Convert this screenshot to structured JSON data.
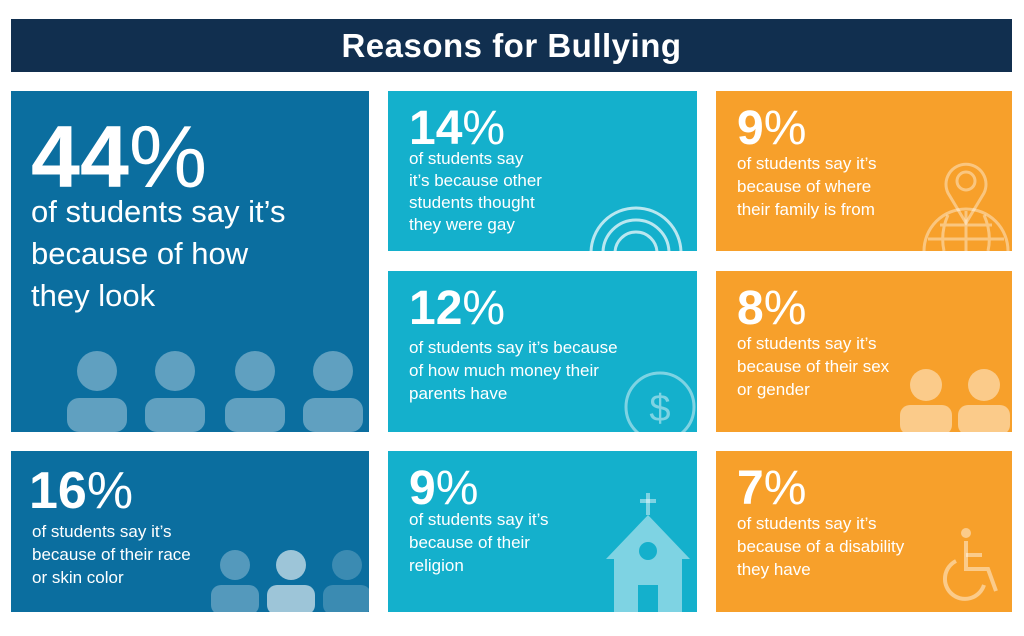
{
  "title": "Reasons for Bullying",
  "cards": [
    {
      "value": "44",
      "symbol": "%",
      "text": [
        "of students say it’s",
        "because of how",
        "they look"
      ],
      "icon": "people-icon",
      "color": "#0b6e9f"
    },
    {
      "value": "14",
      "symbol": "%",
      "text": [
        "of students say",
        "it’s because other",
        "students thought",
        "they were gay"
      ],
      "icon": "rainbow-icon",
      "color": "#14b0cc"
    },
    {
      "value": "9",
      "symbol": "%",
      "text": [
        "of students say it’s",
        "because of where",
        "their family is from"
      ],
      "icon": "globe-pin-icon",
      "color": "#f7a02b"
    },
    {
      "value": "12",
      "symbol": "%",
      "text": [
        "of students say it’s because",
        "of how much money their",
        "parents have"
      ],
      "icon": "dollar-coin-icon",
      "color": "#14b0cc"
    },
    {
      "value": "8",
      "symbol": "%",
      "text": [
        "of students say it’s",
        "because of their sex",
        "or gender"
      ],
      "icon": "man-woman-icon",
      "color": "#f7a02b"
    },
    {
      "value": "16",
      "symbol": "%",
      "text": [
        "of students say it’s",
        "because of their race",
        "or skin color"
      ],
      "icon": "people-icon",
      "color": "#0b6e9f"
    },
    {
      "value": "9",
      "symbol": "%",
      "text": [
        "of students say it’s",
        "because of their",
        "religion"
      ],
      "icon": "church-icon",
      "color": "#14b0cc"
    },
    {
      "value": "7",
      "symbol": "%",
      "text": [
        "of students say it’s",
        "because of a disability",
        "they have"
      ],
      "icon": "wheelchair-icon",
      "color": "#f7a02b"
    }
  ]
}
